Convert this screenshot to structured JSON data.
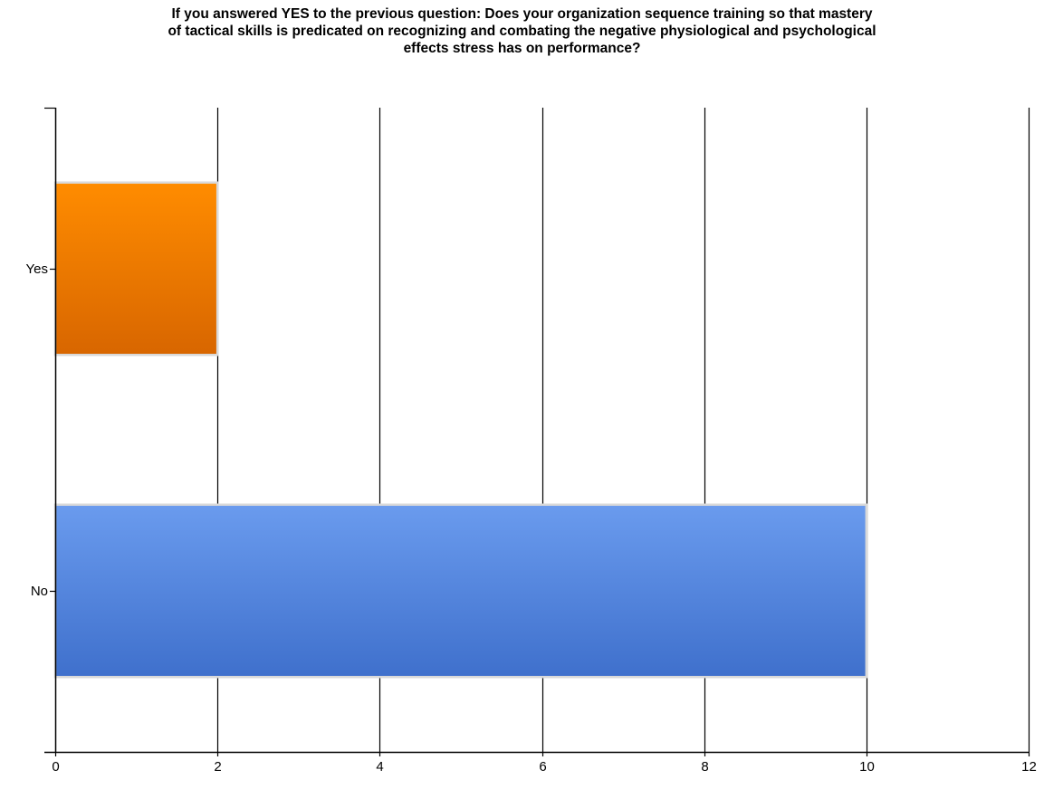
{
  "chart_data": {
    "type": "bar",
    "orientation": "horizontal",
    "title_lines": [
      "If you answered YES to the previous question: Does your organization sequence training so that mastery",
      "of tactical skills is predicated on recognizing and combating the negative physiological and psychological",
      "effects stress has on performance?"
    ],
    "categories": [
      "Yes",
      "No"
    ],
    "values": [
      2,
      10
    ],
    "colors": {
      "Yes": [
        "#ff8c00",
        "#d86600"
      ],
      "No": [
        "#6a9bee",
        "#3f70cc"
      ]
    },
    "xlim": [
      0,
      12
    ],
    "x_ticks": [
      0,
      2,
      4,
      6,
      8,
      10,
      12
    ],
    "x_tick_labels": [
      "0",
      "2",
      "4",
      "6",
      "8",
      "10",
      "12"
    ],
    "grid": true
  }
}
